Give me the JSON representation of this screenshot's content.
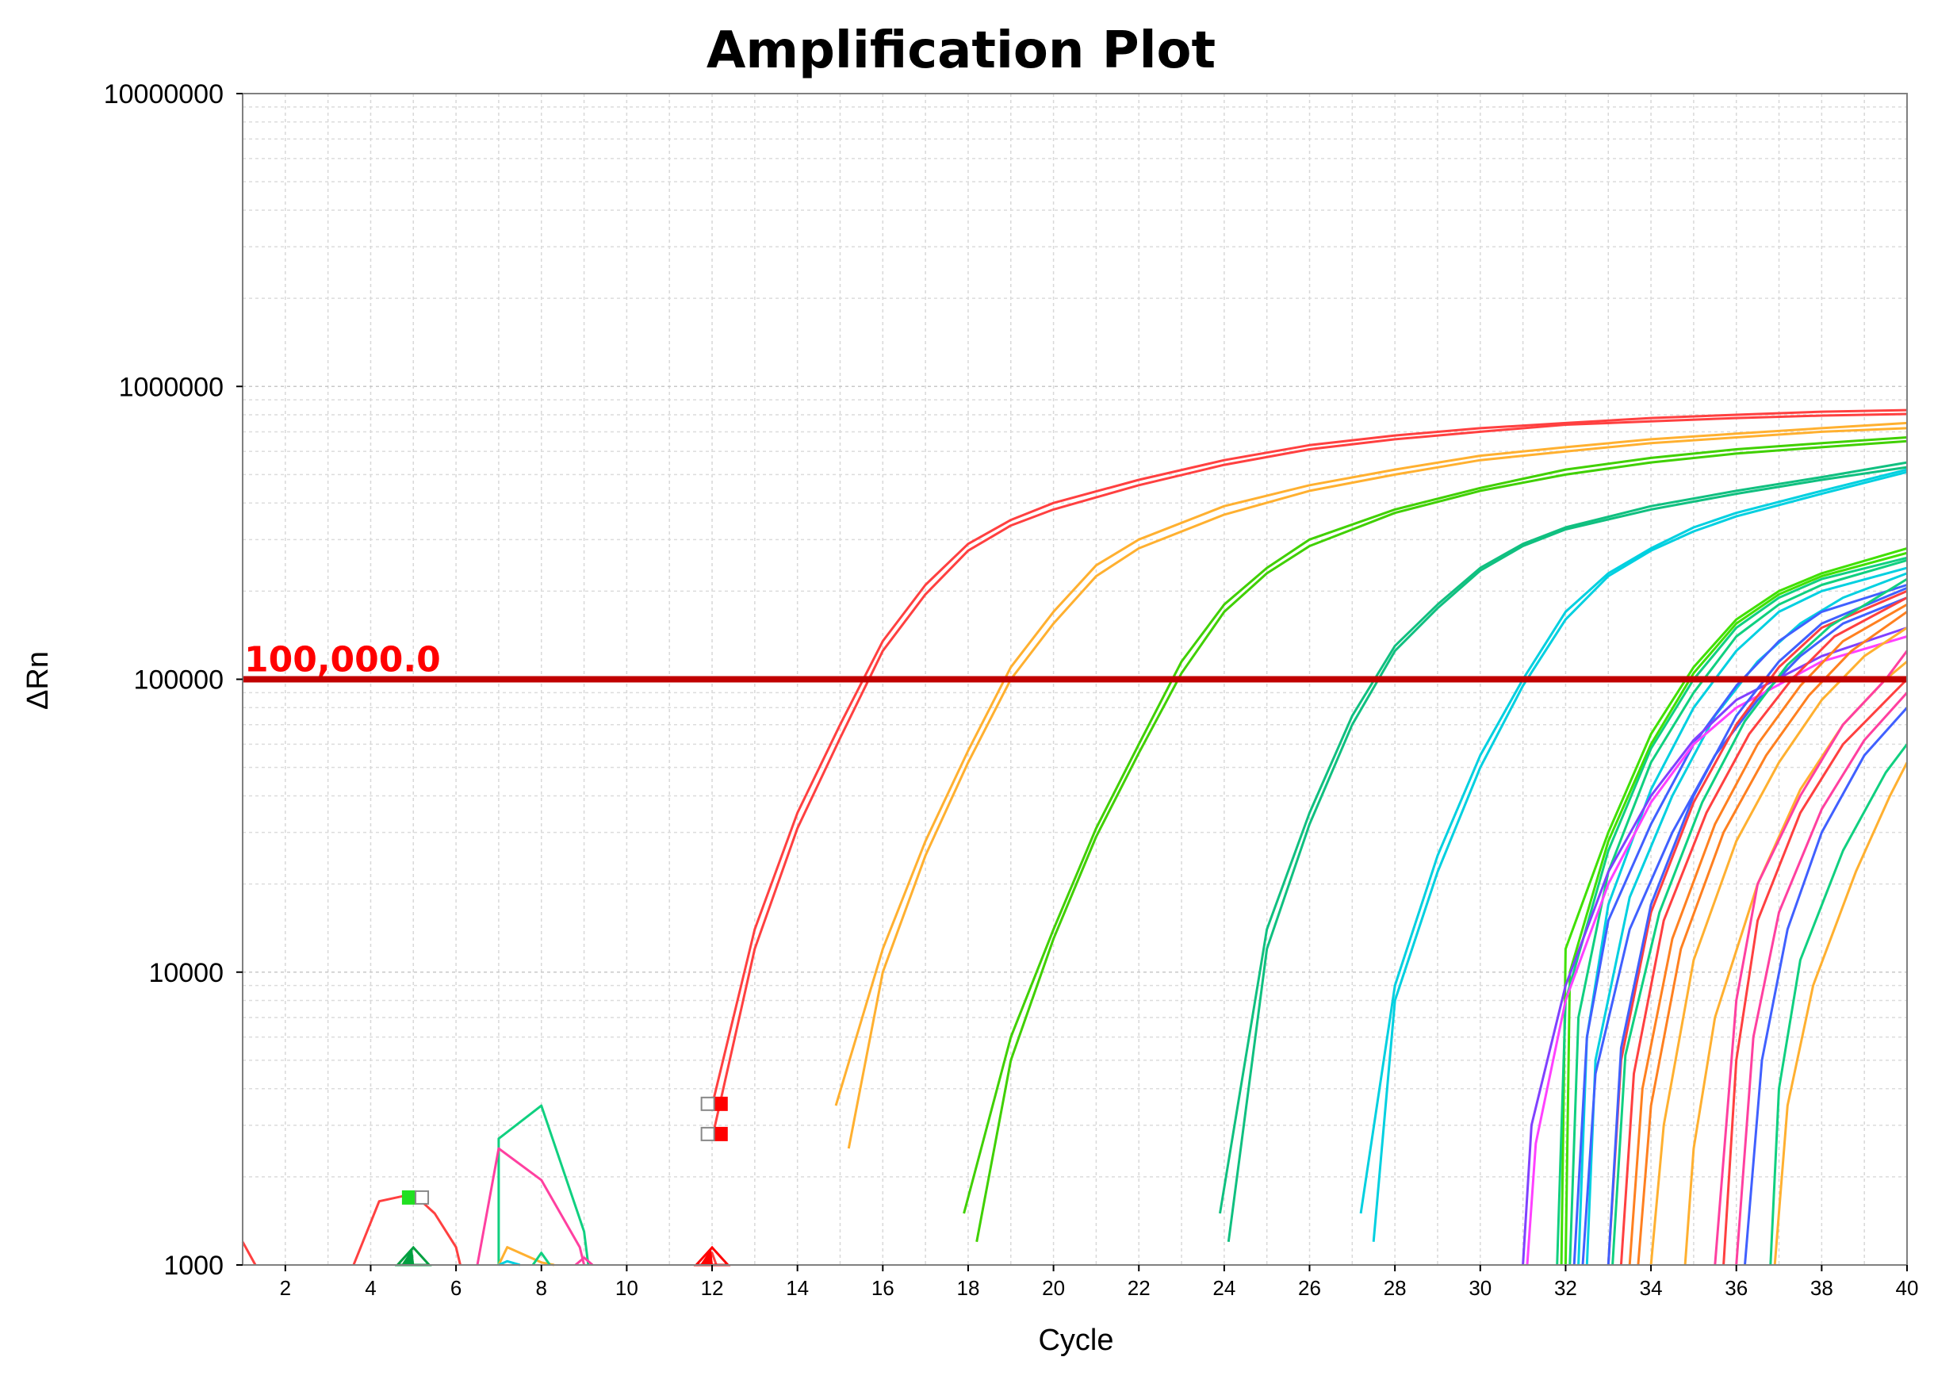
{
  "chart_data": {
    "type": "line",
    "title": "Amplification Plot",
    "xlabel": "Cycle",
    "ylabel": "ΔRn",
    "x_range": [
      1,
      40
    ],
    "y_range": [
      1000,
      10000000
    ],
    "y_scale": "log",
    "grid": true,
    "x_ticks": [
      2,
      4,
      6,
      8,
      10,
      12,
      14,
      16,
      18,
      20,
      22,
      24,
      26,
      28,
      30,
      32,
      34,
      36,
      38,
      40
    ],
    "y_ticks": [
      {
        "value": 1000,
        "label": "1000"
      },
      {
        "value": 10000,
        "label": "10000"
      },
      {
        "value": 100000,
        "label": "100000"
      },
      {
        "value": 1000000,
        "label": "1000000"
      },
      {
        "value": 10000000,
        "label": "10000000"
      }
    ],
    "threshold": {
      "value": 100000,
      "label": "100,000.0",
      "color": "#c00000",
      "label_color": "#ff0000"
    },
    "baseline_markers": [
      {
        "x": 12,
        "y": 1000,
        "color": "#ff0000"
      },
      {
        "x": 5,
        "y": 1000,
        "color": "#00a040"
      }
    ],
    "series": [
      {
        "color": "#ff4040",
        "x": [
          12,
          13,
          14,
          15,
          16,
          17,
          18,
          19,
          20,
          22,
          24,
          26,
          28,
          30,
          32,
          34,
          36,
          38,
          40
        ],
        "y": [
          3500,
          14000,
          35000,
          70000,
          135000,
          210000,
          290000,
          350000,
          400000,
          480000,
          560000,
          630000,
          680000,
          720000,
          750000,
          780000,
          800000,
          820000,
          830000
        ]
      },
      {
        "color": "#ff4040",
        "x": [
          12,
          13,
          14,
          15,
          16,
          17,
          18,
          19,
          20,
          22,
          24,
          26,
          28,
          30,
          32,
          34,
          36,
          38,
          40
        ],
        "y": [
          2700,
          12000,
          31000,
          63000,
          125000,
          195000,
          275000,
          335000,
          380000,
          460000,
          540000,
          610000,
          660000,
          700000,
          740000,
          760000,
          780000,
          795000,
          805000
        ]
      },
      {
        "color": "#ffb030",
        "x": [
          14.9,
          16,
          17,
          18,
          19,
          20,
          21,
          22,
          24,
          26,
          28,
          30,
          32,
          34,
          36,
          38,
          40
        ],
        "y": [
          3500,
          12000,
          28000,
          57000,
          110000,
          170000,
          245000,
          300000,
          390000,
          460000,
          520000,
          580000,
          620000,
          660000,
          690000,
          720000,
          750000
        ]
      },
      {
        "color": "#ffb030",
        "x": [
          15.2,
          16,
          17,
          18,
          19,
          20,
          21,
          22,
          24,
          26,
          28,
          30,
          32,
          34,
          36,
          38,
          40
        ],
        "y": [
          2500,
          10000,
          25000,
          52000,
          100000,
          155000,
          225000,
          280000,
          365000,
          440000,
          500000,
          560000,
          600000,
          640000,
          670000,
          700000,
          720000
        ]
      },
      {
        "color": "#40d000",
        "x": [
          17.9,
          19,
          20,
          21,
          22,
          23,
          24,
          25,
          26,
          28,
          30,
          32,
          34,
          36,
          38,
          40
        ],
        "y": [
          1500,
          6000,
          14000,
          31000,
          60000,
          115000,
          180000,
          240000,
          300000,
          380000,
          450000,
          520000,
          570000,
          610000,
          640000,
          670000
        ]
      },
      {
        "color": "#40d000",
        "x": [
          18.2,
          19,
          20,
          21,
          22,
          23,
          24,
          25,
          26,
          28,
          30,
          32,
          34,
          36,
          38,
          40
        ],
        "y": [
          1200,
          5000,
          13000,
          29000,
          56000,
          105000,
          170000,
          230000,
          285000,
          370000,
          440000,
          500000,
          550000,
          590000,
          620000,
          650000
        ]
      },
      {
        "color": "#10c080",
        "x": [
          23.9,
          25,
          26,
          27,
          28,
          29,
          30,
          31,
          32,
          34,
          36,
          38,
          40
        ],
        "y": [
          1500,
          14000,
          35000,
          75000,
          130000,
          180000,
          240000,
          290000,
          330000,
          390000,
          440000,
          490000,
          550000
        ]
      },
      {
        "color": "#10c080",
        "x": [
          24.1,
          25,
          26,
          27,
          28,
          29,
          30,
          31,
          32,
          34,
          36,
          38,
          40
        ],
        "y": [
          1200,
          12000,
          32000,
          70000,
          125000,
          175000,
          235000,
          285000,
          325000,
          380000,
          430000,
          480000,
          530000
        ]
      },
      {
        "color": "#00d0e0",
        "x": [
          27.2,
          28,
          29,
          30,
          31,
          32,
          33,
          34,
          35,
          36,
          38,
          40
        ],
        "y": [
          1500,
          9000,
          25000,
          55000,
          100000,
          170000,
          230000,
          280000,
          330000,
          370000,
          440000,
          520000
        ]
      },
      {
        "color": "#00d0e0",
        "x": [
          27.5,
          28,
          29,
          30,
          31,
          32,
          33,
          34,
          35,
          36,
          38,
          40
        ],
        "y": [
          1200,
          8000,
          22000,
          50000,
          95000,
          160000,
          225000,
          275000,
          320000,
          360000,
          430000,
          510000
        ]
      },
      {
        "color": "#ff4040",
        "x": [
          1,
          1.3
        ],
        "y": [
          1200,
          1000
        ]
      },
      {
        "color": "#ff4040",
        "x": [
          3.6,
          4.2,
          5,
          5.5,
          6,
          6.1
        ],
        "y": [
          1000,
          1650,
          1750,
          1500,
          1150,
          1000
        ]
      },
      {
        "color": "#10d080",
        "x": [
          7,
          7,
          8,
          9,
          9.1
        ],
        "y": [
          1000,
          2700,
          3500,
          1300,
          1000
        ]
      },
      {
        "color": "#ff40a0",
        "x": [
          6.5,
          7,
          8,
          8.9,
          9
        ],
        "y": [
          1000,
          2500,
          1950,
          1150,
          1000
        ]
      },
      {
        "color": "#ffb030",
        "x": [
          7,
          7.2,
          8,
          8.3
        ],
        "y": [
          1000,
          1150,
          1020,
          1000
        ]
      },
      {
        "color": "#00d0e0",
        "x": [
          7,
          7.2,
          7.5
        ],
        "y": [
          1000,
          1030,
          1000
        ]
      },
      {
        "color": "#10d080",
        "x": [
          7.8,
          8,
          8.2
        ],
        "y": [
          1000,
          1100,
          1000
        ]
      },
      {
        "color": "#ff40a0",
        "x": [
          8.8,
          9,
          9.2
        ],
        "y": [
          1000,
          1060,
          1000
        ]
      },
      {
        "color": "#ff4040",
        "x": [
          11.9,
          12,
          12.1
        ],
        "y": [
          1000,
          1100,
          1000
        ]
      },
      {
        "color": "#40e000",
        "x": [
          31.9,
          32,
          33,
          34,
          35,
          36,
          37,
          38,
          40
        ],
        "y": [
          1000,
          12000,
          30000,
          65000,
          110000,
          160000,
          200000,
          230000,
          280000
        ]
      },
      {
        "color": "#40e000",
        "x": [
          32,
          32.1,
          33,
          34,
          35,
          36,
          37,
          38,
          40
        ],
        "y": [
          1000,
          10000,
          28000,
          60000,
          105000,
          155000,
          195000,
          225000,
          270000
        ]
      },
      {
        "color": "#10d080",
        "x": [
          31.8,
          32,
          33,
          34,
          35,
          36,
          37,
          38,
          40
        ],
        "y": [
          1000,
          8000,
          26000,
          58000,
          100000,
          150000,
          190000,
          220000,
          260000
        ]
      },
      {
        "color": "#10d080",
        "x": [
          32.1,
          32.3,
          33,
          34,
          35,
          36,
          37,
          38,
          40
        ],
        "y": [
          1000,
          7000,
          22000,
          52000,
          90000,
          140000,
          180000,
          210000,
          255000
        ]
      },
      {
        "color": "#00d0e0",
        "x": [
          32.3,
          32.5,
          33,
          34,
          35,
          36,
          37,
          38,
          40
        ],
        "y": [
          1000,
          6000,
          17000,
          42000,
          80000,
          125000,
          170000,
          200000,
          240000
        ]
      },
      {
        "color": "#00d0e0",
        "x": [
          32.5,
          32.7,
          33.5,
          34.5,
          35.5,
          36.5,
          37.5,
          38.5,
          40
        ],
        "y": [
          1000,
          5000,
          18000,
          40000,
          75000,
          115000,
          155000,
          190000,
          230000
        ]
      },
      {
        "color": "#4060ff",
        "x": [
          32.2,
          32.5,
          33,
          34,
          35,
          36,
          37,
          38,
          40
        ],
        "y": [
          1000,
          6000,
          15000,
          32000,
          60000,
          95000,
          135000,
          170000,
          210000
        ]
      },
      {
        "color": "#4060ff",
        "x": [
          32.4,
          32.7,
          33.5,
          34.5,
          35.5,
          36.5,
          37.5,
          38.5,
          40
        ],
        "y": [
          1000,
          4500,
          14000,
          30000,
          55000,
          85000,
          120000,
          155000,
          190000
        ]
      },
      {
        "color": "#8040ff",
        "x": [
          31,
          31.2,
          32,
          33,
          34,
          35,
          36,
          38,
          40
        ],
        "y": [
          1000,
          3000,
          9000,
          22000,
          40000,
          62000,
          85000,
          120000,
          150000
        ]
      },
      {
        "color": "#ff40ff",
        "x": [
          31.1,
          31.3,
          32,
          33,
          34,
          35,
          36,
          38,
          40
        ],
        "y": [
          1000,
          2600,
          8000,
          20000,
          38000,
          60000,
          80000,
          115000,
          140000
        ]
      },
      {
        "color": "#ff4040",
        "x": [
          33,
          33.3,
          34,
          35,
          36,
          37,
          38,
          40
        ],
        "y": [
          1000,
          5000,
          16000,
          38000,
          70000,
          110000,
          150000,
          200000
        ]
      },
      {
        "color": "#ff4040",
        "x": [
          33.3,
          33.6,
          34.3,
          35.3,
          36.3,
          37.3,
          38.3,
          40
        ],
        "y": [
          1000,
          4500,
          15000,
          35000,
          65000,
          100000,
          140000,
          190000
        ]
      },
      {
        "color": "#ff8020",
        "x": [
          33.5,
          33.8,
          34.5,
          35.5,
          36.5,
          37.5,
          38.5,
          40
        ],
        "y": [
          1000,
          4000,
          13000,
          32000,
          60000,
          95000,
          135000,
          180000
        ]
      },
      {
        "color": "#ff8020",
        "x": [
          33.7,
          34,
          34.7,
          35.7,
          36.7,
          37.7,
          38.7,
          40
        ],
        "y": [
          1000,
          3500,
          12000,
          30000,
          55000,
          88000,
          125000,
          170000
        ]
      },
      {
        "color": "#ffb030",
        "x": [
          34,
          34.3,
          35,
          36,
          37,
          38,
          39,
          40
        ],
        "y": [
          1000,
          3000,
          11000,
          28000,
          52000,
          85000,
          120000,
          150000
        ]
      },
      {
        "color": "#ffb030",
        "x": [
          34.8,
          35,
          35.5,
          36.5,
          37.5,
          38.5,
          39.5,
          40
        ],
        "y": [
          1000,
          2500,
          7000,
          20000,
          42000,
          70000,
          100000,
          115000
        ]
      },
      {
        "color": "#ff40a0",
        "x": [
          35.5,
          36,
          36.5,
          37.5,
          38.5,
          39.5,
          40
        ],
        "y": [
          1000,
          8000,
          20000,
          40000,
          70000,
          100000,
          125000
        ]
      },
      {
        "color": "#ff40a0",
        "x": [
          36,
          36.4,
          37,
          38,
          39,
          40
        ],
        "y": [
          1000,
          6000,
          16000,
          36000,
          62000,
          90000
        ]
      },
      {
        "color": "#4060ff",
        "x": [
          36.2,
          36.6,
          37.2,
          38,
          39,
          40
        ],
        "y": [
          1000,
          5000,
          14000,
          30000,
          55000,
          80000
        ]
      },
      {
        "color": "#10d080",
        "x": [
          36.8,
          37,
          37.5,
          38.5,
          39.5,
          40
        ],
        "y": [
          1000,
          4000,
          11000,
          26000,
          48000,
          60000
        ]
      },
      {
        "color": "#ffb030",
        "x": [
          36.9,
          37.2,
          37.8,
          38.8,
          39.6,
          40
        ],
        "y": [
          1000,
          3500,
          9000,
          22000,
          40000,
          52000
        ]
      },
      {
        "color": "#ff4040",
        "x": [
          35.7,
          36,
          36.5,
          37.5,
          38.5,
          40
        ],
        "y": [
          1000,
          5000,
          15000,
          35000,
          60000,
          100000
        ]
      },
      {
        "color": "#4060ff",
        "x": [
          33,
          33.3,
          34,
          35,
          36,
          37,
          38,
          40
        ],
        "y": [
          1000,
          5500,
          17000,
          40000,
          75000,
          115000,
          155000,
          205000
        ]
      },
      {
        "color": "#10d080",
        "x": [
          33.1,
          33.4,
          34.2,
          35.2,
          36.2,
          37.2,
          38.2,
          40
        ],
        "y": [
          1000,
          5200,
          16000,
          38000,
          72000,
          112000,
          152000,
          220000
        ]
      }
    ],
    "point_markers": [
      {
        "x": 12.2,
        "y": 3550,
        "color": "#ff0000",
        "filled": true
      },
      {
        "x": 12.2,
        "y": 2800,
        "color": "#ff0000",
        "filled": true
      },
      {
        "x": 11.9,
        "y": 3550,
        "color": "#888888",
        "filled": false
      },
      {
        "x": 11.9,
        "y": 2800,
        "color": "#888888",
        "filled": false
      },
      {
        "x": 4.9,
        "y": 1700,
        "color": "#20e020",
        "filled": true
      },
      {
        "x": 5.2,
        "y": 1700,
        "color": "#888888",
        "filled": false
      }
    ]
  }
}
